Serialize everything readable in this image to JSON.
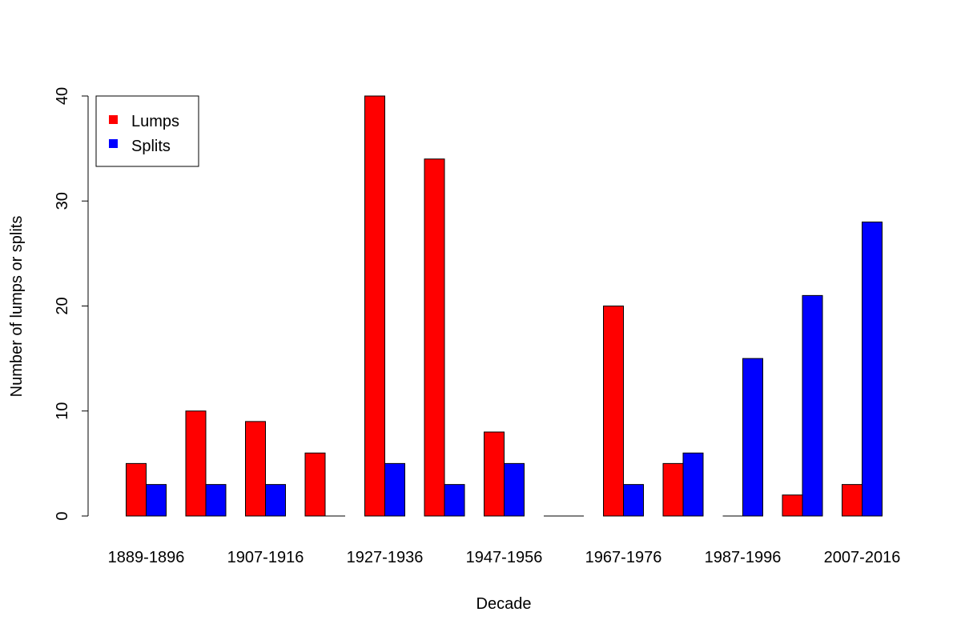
{
  "chart_data": {
    "type": "bar",
    "title": "",
    "xlabel": "Decade",
    "ylabel": "Number of lumps or splits",
    "categories": [
      "1889-1896",
      "",
      "1907-1916",
      "",
      "1927-1936",
      "",
      "1947-1956",
      "",
      "1967-1976",
      "",
      "1987-1996",
      "",
      "2007-2016"
    ],
    "series": [
      {
        "name": "Lumps",
        "color": "#ff0000",
        "values": [
          5,
          10,
          9,
          6,
          40,
          34,
          8,
          0,
          20,
          5,
          0,
          2,
          3
        ]
      },
      {
        "name": "Splits",
        "color": "#0000ff",
        "values": [
          3,
          3,
          3,
          0,
          5,
          3,
          5,
          0,
          3,
          6,
          15,
          21,
          28
        ]
      }
    ],
    "ylim": [
      0,
      40
    ],
    "yticks": [
      0,
      10,
      20,
      30,
      40
    ],
    "grid": false,
    "legend_position": "top-left"
  }
}
